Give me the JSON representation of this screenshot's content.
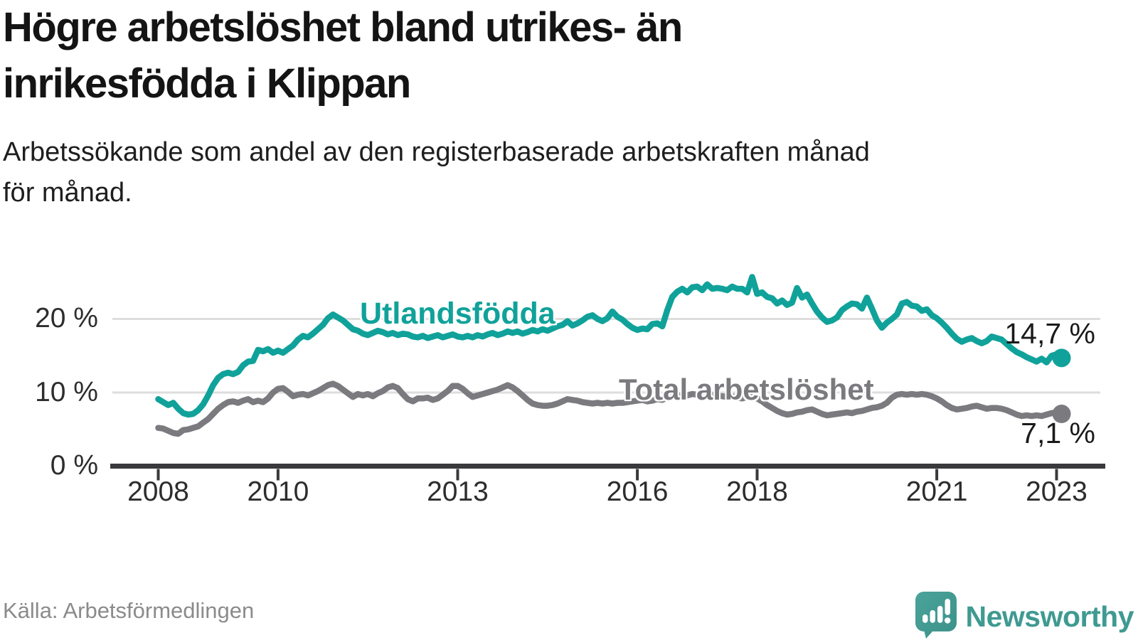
{
  "header": {
    "title_line1": "Högre arbetslöshet bland utrikes- än",
    "title_line2": "inrikesfödda i Klippan",
    "subtitle_line1": "Arbetssökande som andel av den registerbaserade arbetskraften månad",
    "subtitle_line2": "för månad."
  },
  "footer": {
    "source": "Källa: Arbetsförmedlingen",
    "brand": "Newsworthy",
    "brand_color": "#3f9a91"
  },
  "chart_data": {
    "type": "line",
    "title": "Högre arbetslöshet bland utrikes- än inrikesfödda i Klippan",
    "xlabel": "",
    "ylabel": "Arbetssökande som andel av den registerbaserade arbetskraften",
    "frequency": "monthly",
    "x_start": {
      "year": 2008,
      "month": 1
    },
    "x_end": {
      "year": 2023,
      "month": 2
    },
    "x_ticks": [
      2008,
      2010,
      2013,
      2016,
      2018,
      2021,
      2023
    ],
    "y_ticks": [
      {
        "value": 0,
        "label": "0 %"
      },
      {
        "value": 10,
        "label": "10 %"
      },
      {
        "value": 20,
        "label": "20 %"
      }
    ],
    "ylim": [
      0,
      27
    ],
    "grid": "horizontal",
    "legend_position": "inline-labels",
    "series": [
      {
        "name": "utlandsfodda",
        "label": "Utlandsfödda",
        "color": "#10a29a",
        "end_label": "14,7 %",
        "end_value": 14.7,
        "values": [
          9.1,
          8.7,
          8.3,
          8.6,
          7.8,
          7.2,
          7.0,
          7.1,
          7.6,
          8.4,
          9.6,
          11.0,
          12.0,
          12.5,
          12.7,
          12.5,
          12.8,
          13.7,
          14.2,
          14.3,
          15.8,
          15.6,
          15.9,
          15.4,
          15.7,
          15.4,
          15.9,
          16.4,
          17.2,
          17.7,
          17.5,
          18.0,
          18.6,
          19.2,
          20.1,
          20.6,
          20.2,
          19.8,
          19.2,
          18.6,
          18.4,
          18.0,
          17.8,
          18.1,
          18.4,
          18.2,
          17.9,
          18.1,
          17.8,
          18.0,
          17.9,
          17.6,
          17.5,
          17.7,
          17.4,
          17.6,
          17.8,
          17.5,
          17.7,
          17.9,
          17.6,
          17.5,
          17.7,
          17.5,
          17.8,
          17.6,
          17.9,
          18.1,
          17.8,
          18.0,
          18.3,
          18.1,
          18.3,
          18.0,
          18.2,
          18.5,
          18.3,
          18.6,
          18.4,
          18.7,
          19.0,
          19.2,
          19.7,
          19.1,
          19.4,
          19.8,
          20.3,
          20.5,
          20.0,
          19.7,
          20.1,
          21.0,
          20.3,
          19.9,
          19.3,
          18.8,
          18.5,
          18.7,
          18.6,
          19.3,
          19.4,
          19.0,
          21.2,
          23.0,
          23.7,
          24.1,
          23.6,
          24.3,
          24.4,
          23.9,
          24.7,
          24.1,
          24.2,
          24.1,
          23.9,
          24.4,
          24.1,
          24.1,
          23.6,
          25.7,
          23.4,
          23.6,
          23.0,
          22.8,
          22.1,
          22.5,
          21.9,
          22.2,
          24.2,
          22.9,
          23.3,
          22.1,
          21.0,
          20.2,
          19.6,
          19.8,
          20.2,
          21.2,
          21.7,
          22.1,
          22.0,
          21.4,
          22.9,
          21.4,
          19.8,
          18.8,
          19.5,
          20.0,
          20.6,
          22.1,
          22.3,
          21.8,
          21.7,
          21.1,
          21.3,
          20.5,
          20.1,
          19.5,
          18.8,
          18.0,
          17.3,
          16.9,
          17.2,
          17.4,
          17.0,
          16.7,
          17.0,
          17.6,
          17.4,
          17.2,
          16.6,
          16.0,
          15.5,
          15.2,
          14.8,
          14.5,
          14.2,
          14.6,
          14.1,
          15.0,
          15.2,
          14.7
        ]
      },
      {
        "name": "total-arbetsloshet",
        "label": "Total arbetslöshet",
        "color": "#7b7a7e",
        "end_label": "7,1 %",
        "end_value": 7.1,
        "values": [
          5.2,
          5.1,
          4.8,
          4.5,
          4.4,
          4.9,
          5.0,
          5.2,
          5.4,
          5.9,
          6.4,
          7.1,
          7.8,
          8.3,
          8.7,
          8.8,
          8.6,
          8.9,
          9.1,
          8.7,
          8.9,
          8.7,
          9.2,
          10.0,
          10.5,
          10.6,
          10.1,
          9.5,
          9.7,
          9.8,
          9.6,
          9.9,
          10.2,
          10.6,
          11.0,
          11.2,
          10.9,
          10.4,
          9.9,
          9.4,
          9.8,
          9.6,
          9.8,
          9.5,
          9.9,
          10.2,
          10.7,
          10.9,
          10.6,
          9.8,
          9.1,
          8.8,
          9.2,
          9.2,
          9.3,
          9.0,
          9.2,
          9.7,
          10.2,
          10.9,
          10.9,
          10.5,
          9.9,
          9.4,
          9.6,
          9.8,
          10.0,
          10.2,
          10.4,
          10.7,
          11.0,
          10.7,
          10.2,
          9.6,
          9.0,
          8.5,
          8.3,
          8.2,
          8.2,
          8.3,
          8.5,
          8.8,
          9.1,
          9.0,
          8.9,
          8.7,
          8.6,
          8.5,
          8.6,
          8.5,
          8.6,
          8.5,
          8.6,
          8.6,
          8.7,
          8.8,
          8.9,
          9.0,
          8.8,
          8.9,
          9.1,
          9.0,
          9.4,
          9.6,
          9.5,
          9.7,
          9.6,
          9.8,
          9.7,
          9.8,
          9.9,
          9.7,
          9.6,
          9.5,
          9.4,
          9.5,
          9.3,
          9.2,
          9.4,
          9.6,
          9.2,
          8.8,
          8.3,
          7.9,
          7.5,
          7.2,
          7.0,
          7.1,
          7.3,
          7.4,
          7.6,
          7.7,
          7.4,
          7.1,
          6.9,
          7.0,
          7.1,
          7.2,
          7.3,
          7.2,
          7.4,
          7.5,
          7.7,
          7.9,
          8.0,
          8.2,
          8.6,
          9.3,
          9.7,
          9.8,
          9.7,
          9.8,
          9.7,
          9.8,
          9.7,
          9.5,
          9.2,
          8.8,
          8.3,
          7.9,
          7.7,
          7.8,
          7.9,
          8.1,
          8.2,
          8.0,
          7.8,
          7.9,
          7.9,
          7.8,
          7.6,
          7.3,
          7.0,
          6.8,
          6.9,
          6.8,
          6.9,
          6.8,
          7.0,
          7.2,
          7.3,
          7.1
        ]
      }
    ]
  }
}
